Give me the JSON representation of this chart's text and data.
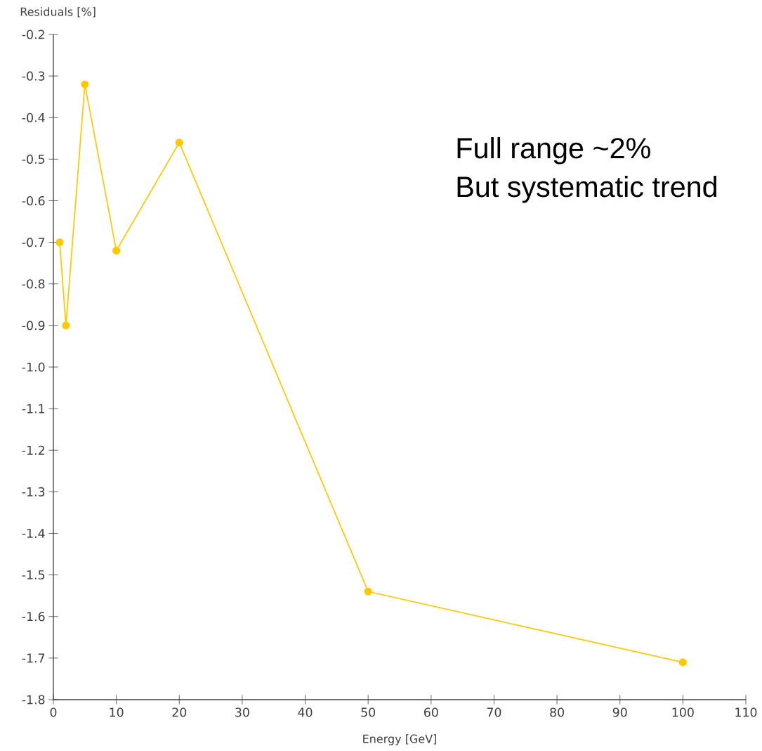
{
  "chart_data": {
    "type": "line",
    "xlabel": "Energy [GeV]",
    "ylabel": "Residuals [%]",
    "x": [
      1,
      2,
      5,
      10,
      20,
      50,
      100
    ],
    "series": [
      {
        "color": "#ffc800",
        "values": [
          -0.7,
          -0.9,
          -0.32,
          -0.72,
          -0.46,
          -1.54,
          -1.71
        ]
      }
    ],
    "xlim": [
      0,
      110
    ],
    "xticks": [
      0,
      10,
      20,
      30,
      40,
      50,
      60,
      70,
      80,
      90,
      100,
      110
    ],
    "ylim": [
      -1.8,
      -0.2
    ],
    "yticks": [
      {
        "value": -1.8,
        "label": "-1.8"
      },
      {
        "value": -1.7,
        "label": "-1.7"
      },
      {
        "value": -1.6,
        "label": "-1.6"
      },
      {
        "value": -1.5,
        "label": "-1.5"
      },
      {
        "value": -1.4,
        "label": "-1.4"
      },
      {
        "value": -1.3,
        "label": "-1.3"
      },
      {
        "value": -1.2,
        "label": "-1.2"
      },
      {
        "value": -1.1,
        "label": "-1.1"
      },
      {
        "value": -1.0,
        "label": "-1.0"
      },
      {
        "value": -0.9,
        "label": "-0.9"
      },
      {
        "value": -0.8,
        "label": "-0.8"
      },
      {
        "value": -0.7,
        "label": "-0.7"
      },
      {
        "value": -0.6,
        "label": "-0.6"
      },
      {
        "value": -0.5,
        "label": "-0.5"
      },
      {
        "value": -0.4,
        "label": "-0.4"
      },
      {
        "value": -0.3,
        "label": "-0.3"
      },
      {
        "value": -0.2,
        "label": "-0.2"
      }
    ],
    "grid": false,
    "marker": "circle",
    "line_style": "solid",
    "annotations": [
      "Full range ~2%",
      "But systematic trend"
    ]
  }
}
